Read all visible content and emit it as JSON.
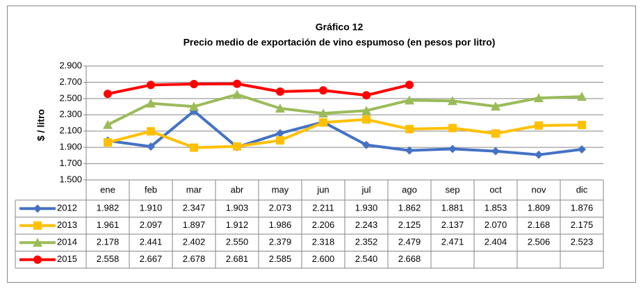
{
  "chart_data": {
    "type": "line",
    "title": "Gráfico 12",
    "subtitle": "Precio medio de exportación de vino espumoso (en pesos por litro)",
    "y_label": "$ / litro",
    "categories": [
      "ene",
      "feb",
      "mar",
      "abr",
      "may",
      "jun",
      "jul",
      "ago",
      "sep",
      "oct",
      "nov",
      "dic"
    ],
    "ylim": [
      1500,
      2900
    ],
    "yticks": [
      {
        "value": 1500,
        "label": "1.500"
      },
      {
        "value": 1700,
        "label": "1.700"
      },
      {
        "value": 1900,
        "label": "1.900"
      },
      {
        "value": 2100,
        "label": "2.100"
      },
      {
        "value": 2300,
        "label": "2.300"
      },
      {
        "value": 2500,
        "label": "2.500"
      },
      {
        "value": 2700,
        "label": "2.700"
      },
      {
        "value": 2900,
        "label": "2.900"
      }
    ],
    "grid": true,
    "series": [
      {
        "name": "2012",
        "color": "#4472c4",
        "marker": "diamond",
        "values": [
          1982,
          1910,
          2347,
          1903,
          2073,
          2211,
          1930,
          1862,
          1881,
          1853,
          1809,
          1876
        ],
        "value_labels": [
          "1.982",
          "1.910",
          "2.347",
          "1.903",
          "2.073",
          "2.211",
          "1.930",
          "1.862",
          "1.881",
          "1.853",
          "1.809",
          "1.876"
        ]
      },
      {
        "name": "2013",
        "color": "#ffc000",
        "marker": "square",
        "values": [
          1961,
          2097,
          1897,
          1912,
          1986,
          2206,
          2243,
          2125,
          2137,
          2070,
          2168,
          2175
        ],
        "value_labels": [
          "1.961",
          "2.097",
          "1.897",
          "1.912",
          "1.986",
          "2.206",
          "2.243",
          "2.125",
          "2.137",
          "2.070",
          "2.168",
          "2.175"
        ]
      },
      {
        "name": "2014",
        "color": "#9bbb59",
        "marker": "triangle",
        "values": [
          2178,
          2441,
          2402,
          2550,
          2379,
          2318,
          2352,
          2479,
          2471,
          2404,
          2506,
          2523
        ],
        "value_labels": [
          "2.178",
          "2.441",
          "2.402",
          "2.550",
          "2.379",
          "2.318",
          "2.352",
          "2.479",
          "2.471",
          "2.404",
          "2.506",
          "2.523"
        ]
      },
      {
        "name": "2015",
        "color": "#ff0000",
        "marker": "circle",
        "values": [
          2558,
          2667,
          2678,
          2681,
          2585,
          2600,
          2540,
          2668,
          null,
          null,
          null,
          null
        ],
        "value_labels": [
          "2.558",
          "2.667",
          "2.678",
          "2.681",
          "2.585",
          "2.600",
          "2.540",
          "2.668",
          null,
          null,
          null,
          null
        ]
      }
    ]
  }
}
